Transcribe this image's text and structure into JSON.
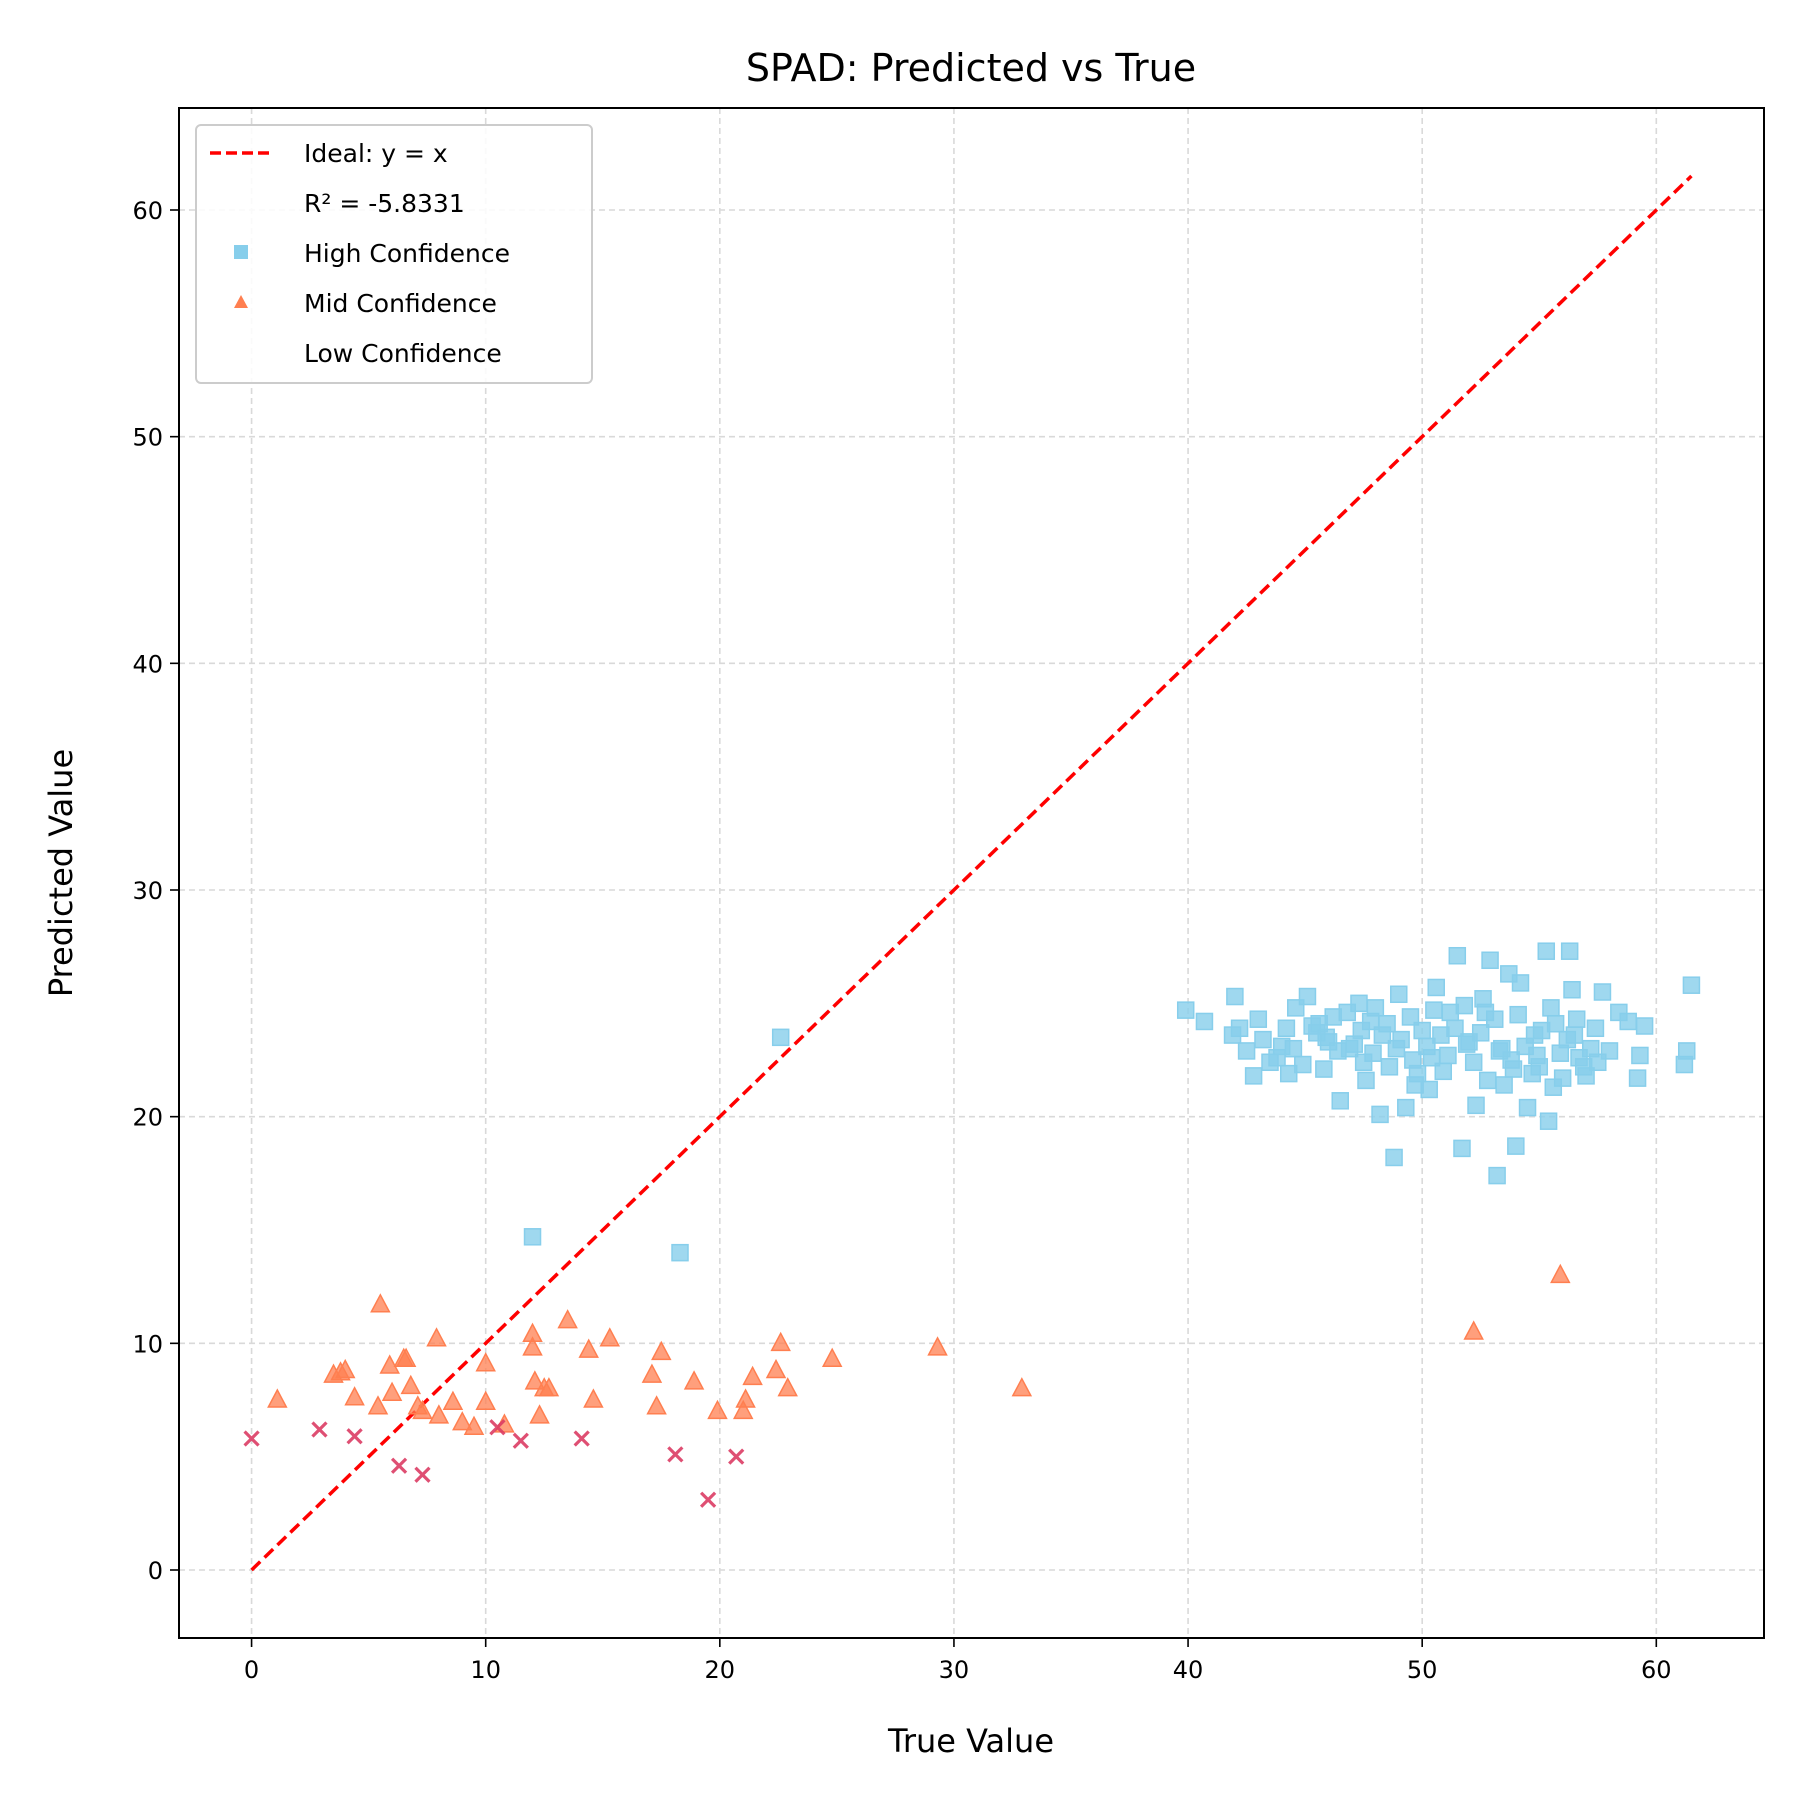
{
  "chart_data": {
    "type": "scatter",
    "title": "SPAD: Predicted vs True",
    "xlabel": "True Value",
    "ylabel": "Predicted Value",
    "xlim": [
      -3.1,
      64.6
    ],
    "ylim": [
      -3.0,
      64.5
    ],
    "xticks": [
      0,
      10,
      20,
      30,
      40,
      50,
      60
    ],
    "yticks": [
      0,
      10,
      20,
      30,
      40,
      50,
      60
    ],
    "grid": true,
    "legend_position": "top-left",
    "legend": {
      "ideal": "Ideal: y = x",
      "r2": "R² = -5.8331",
      "high": "High Confidence",
      "mid": "Mid Confidence",
      "low": "Low Confidence"
    },
    "colors": {
      "ideal": "#ff0000",
      "high": "#87ceeb",
      "mid": "#ff7f50",
      "low": "#dc3c64"
    },
    "ideal_line": {
      "x": [
        0,
        61.5
      ],
      "y": [
        0,
        61.5
      ]
    },
    "series": [
      {
        "name": "High Confidence",
        "marker": "square",
        "points": [
          [
            12.0,
            14.7
          ],
          [
            18.3,
            14.0
          ],
          [
            22.6,
            23.5
          ],
          [
            39.9,
            24.7
          ],
          [
            40.7,
            24.2
          ],
          [
            42.0,
            25.3
          ],
          [
            42.2,
            23.9
          ],
          [
            41.9,
            23.6
          ],
          [
            42.5,
            22.9
          ],
          [
            43.0,
            24.3
          ],
          [
            42.8,
            21.8
          ],
          [
            43.5,
            22.4
          ],
          [
            44.0,
            23.1
          ],
          [
            44.6,
            24.8
          ],
          [
            44.3,
            21.9
          ],
          [
            45.1,
            25.3
          ],
          [
            45.5,
            23.7
          ],
          [
            45.8,
            22.1
          ],
          [
            46.2,
            24.4
          ],
          [
            46.5,
            20.7
          ],
          [
            46.9,
            23.0
          ],
          [
            47.3,
            25.0
          ],
          [
            47.6,
            21.6
          ],
          [
            47.9,
            22.8
          ],
          [
            48.2,
            20.1
          ],
          [
            48.5,
            24.1
          ],
          [
            48.8,
            18.2
          ],
          [
            49.0,
            25.4
          ],
          [
            49.3,
            20.4
          ],
          [
            49.6,
            22.5
          ],
          [
            50.0,
            23.8
          ],
          [
            50.3,
            21.2
          ],
          [
            50.6,
            25.7
          ],
          [
            50.9,
            22.0
          ],
          [
            51.2,
            24.6
          ],
          [
            51.5,
            27.1
          ],
          [
            51.7,
            18.6
          ],
          [
            52.0,
            23.3
          ],
          [
            52.3,
            20.5
          ],
          [
            52.6,
            25.2
          ],
          [
            52.9,
            26.9
          ],
          [
            53.2,
            17.4
          ],
          [
            53.5,
            21.4
          ],
          [
            53.7,
            26.3
          ],
          [
            54.0,
            18.7
          ],
          [
            54.2,
            25.9
          ],
          [
            54.5,
            20.4
          ],
          [
            54.8,
            23.6
          ],
          [
            55.0,
            22.2
          ],
          [
            55.3,
            27.3
          ],
          [
            55.4,
            19.8
          ],
          [
            55.7,
            24.1
          ],
          [
            56.0,
            21.7
          ],
          [
            56.3,
            27.3
          ],
          [
            56.4,
            25.6
          ],
          [
            56.7,
            22.6
          ],
          [
            57.0,
            21.8
          ],
          [
            57.4,
            23.9
          ],
          [
            57.7,
            25.5
          ],
          [
            58.0,
            22.9
          ],
          [
            58.4,
            24.6
          ],
          [
            58.8,
            24.2
          ],
          [
            59.2,
            21.7
          ],
          [
            59.3,
            22.7
          ],
          [
            59.5,
            24.0
          ],
          [
            61.2,
            22.3
          ],
          [
            61.3,
            22.9
          ],
          [
            61.5,
            25.8
          ],
          [
            43.2,
            23.4
          ],
          [
            43.8,
            22.6
          ],
          [
            44.2,
            23.9
          ],
          [
            44.9,
            22.3
          ],
          [
            45.3,
            24.0
          ],
          [
            45.9,
            23.5
          ],
          [
            46.4,
            22.9
          ],
          [
            46.8,
            24.6
          ],
          [
            47.1,
            23.2
          ],
          [
            47.5,
            22.4
          ],
          [
            47.8,
            24.2
          ],
          [
            48.3,
            23.6
          ],
          [
            48.6,
            22.2
          ],
          [
            49.1,
            23.4
          ],
          [
            49.5,
            24.4
          ],
          [
            49.8,
            21.9
          ],
          [
            50.2,
            23.1
          ],
          [
            50.5,
            24.7
          ],
          [
            50.8,
            23.6
          ],
          [
            51.1,
            22.7
          ],
          [
            51.4,
            23.9
          ],
          [
            51.8,
            24.9
          ],
          [
            52.2,
            22.4
          ],
          [
            52.5,
            23.7
          ],
          [
            52.8,
            21.6
          ],
          [
            53.1,
            24.3
          ],
          [
            53.4,
            23.0
          ],
          [
            53.8,
            22.5
          ],
          [
            54.1,
            24.5
          ],
          [
            54.4,
            23.1
          ],
          [
            54.7,
            21.9
          ],
          [
            55.1,
            23.8
          ],
          [
            55.5,
            24.8
          ],
          [
            55.9,
            22.8
          ],
          [
            56.2,
            23.4
          ],
          [
            56.6,
            24.3
          ],
          [
            56.9,
            22.2
          ],
          [
            57.2,
            23.0
          ],
          [
            44.5,
            23.0
          ],
          [
            46.0,
            23.3
          ],
          [
            47.4,
            23.8
          ],
          [
            48.9,
            23.0
          ],
          [
            50.4,
            22.6
          ],
          [
            51.9,
            23.2
          ],
          [
            53.3,
            22.9
          ],
          [
            54.9,
            22.7
          ],
          [
            56.5,
            23.6
          ],
          [
            45.6,
            24.1
          ],
          [
            48.0,
            24.8
          ],
          [
            49.7,
            21.4
          ],
          [
            52.7,
            24.6
          ],
          [
            53.9,
            22.1
          ],
          [
            55.6,
            21.3
          ],
          [
            57.5,
            22.4
          ]
        ]
      },
      {
        "name": "Mid Confidence",
        "marker": "triangle",
        "points": [
          [
            1.1,
            7.5
          ],
          [
            3.5,
            8.6
          ],
          [
            3.8,
            8.7
          ],
          [
            4.0,
            8.8
          ],
          [
            4.4,
            7.6
          ],
          [
            5.5,
            11.7
          ],
          [
            5.4,
            7.2
          ],
          [
            5.9,
            9.0
          ],
          [
            6.0,
            7.8
          ],
          [
            6.5,
            9.3
          ],
          [
            6.6,
            9.3
          ],
          [
            6.8,
            8.1
          ],
          [
            7.1,
            7.2
          ],
          [
            7.3,
            7.0
          ],
          [
            7.9,
            10.2
          ],
          [
            8.0,
            6.8
          ],
          [
            8.6,
            7.4
          ],
          [
            9.0,
            6.5
          ],
          [
            9.5,
            6.3
          ],
          [
            10.0,
            9.1
          ],
          [
            10.0,
            7.4
          ],
          [
            10.8,
            6.4
          ],
          [
            12.0,
            10.4
          ],
          [
            12.0,
            9.8
          ],
          [
            12.1,
            8.3
          ],
          [
            12.3,
            6.8
          ],
          [
            12.5,
            8.0
          ],
          [
            12.7,
            8.0
          ],
          [
            13.5,
            11.0
          ],
          [
            14.4,
            9.7
          ],
          [
            14.6,
            7.5
          ],
          [
            15.3,
            10.2
          ],
          [
            17.1,
            8.6
          ],
          [
            17.3,
            7.2
          ],
          [
            17.5,
            9.6
          ],
          [
            18.9,
            8.3
          ],
          [
            19.9,
            7.0
          ],
          [
            21.0,
            7.0
          ],
          [
            21.1,
            7.5
          ],
          [
            21.4,
            8.5
          ],
          [
            22.4,
            8.8
          ],
          [
            22.6,
            10.0
          ],
          [
            22.9,
            8.0
          ],
          [
            24.8,
            9.3
          ],
          [
            29.3,
            9.8
          ],
          [
            32.9,
            8.0
          ],
          [
            52.2,
            10.5
          ],
          [
            55.9,
            13.0
          ]
        ]
      },
      {
        "name": "Low Confidence",
        "marker": "x",
        "points": [
          [
            0.0,
            5.8
          ],
          [
            2.9,
            6.2
          ],
          [
            4.4,
            5.9
          ],
          [
            6.3,
            4.6
          ],
          [
            7.3,
            4.2
          ],
          [
            10.5,
            6.3
          ],
          [
            11.5,
            5.7
          ],
          [
            14.1,
            5.8
          ],
          [
            18.1,
            5.1
          ],
          [
            19.5,
            3.1
          ],
          [
            20.7,
            5.0
          ]
        ]
      }
    ]
  }
}
